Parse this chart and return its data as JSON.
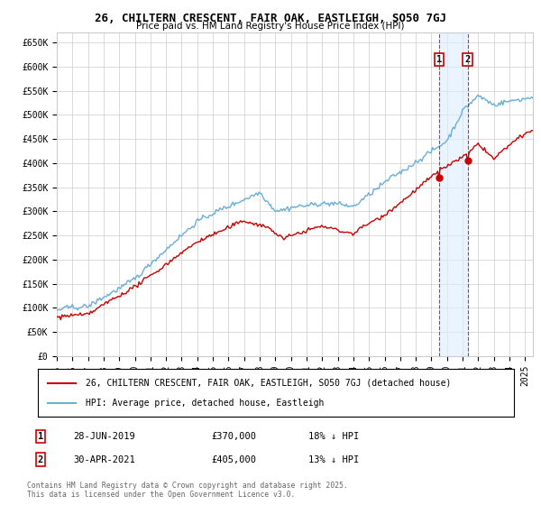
{
  "title": "26, CHILTERN CRESCENT, FAIR OAK, EASTLEIGH, SO50 7GJ",
  "subtitle": "Price paid vs. HM Land Registry's House Price Index (HPI)",
  "ylabel_ticks": [
    "£0",
    "£50K",
    "£100K",
    "£150K",
    "£200K",
    "£250K",
    "£300K",
    "£350K",
    "£400K",
    "£450K",
    "£500K",
    "£550K",
    "£600K",
    "£650K"
  ],
  "ytick_values": [
    0,
    50000,
    100000,
    150000,
    200000,
    250000,
    300000,
    350000,
    400000,
    450000,
    500000,
    550000,
    600000,
    650000
  ],
  "ylim": [
    0,
    670000
  ],
  "xlim_start": 1995.0,
  "xlim_end": 2025.5,
  "hpi_color": "#6baed6",
  "price_color": "#cc0000",
  "sale1_date": 2019.49,
  "sale1_price": 370000,
  "sale2_date": 2021.33,
  "sale2_price": 405000,
  "legend_line1": "26, CHILTERN CRESCENT, FAIR OAK, EASTLEIGH, SO50 7GJ (detached house)",
  "legend_line2": "HPI: Average price, detached house, Eastleigh",
  "footnote": "Contains HM Land Registry data © Crown copyright and database right 2025.\nThis data is licensed under the Open Government Licence v3.0.",
  "background_color": "#ffffff",
  "grid_color": "#cccccc",
  "shade_color": "#ddeeff"
}
